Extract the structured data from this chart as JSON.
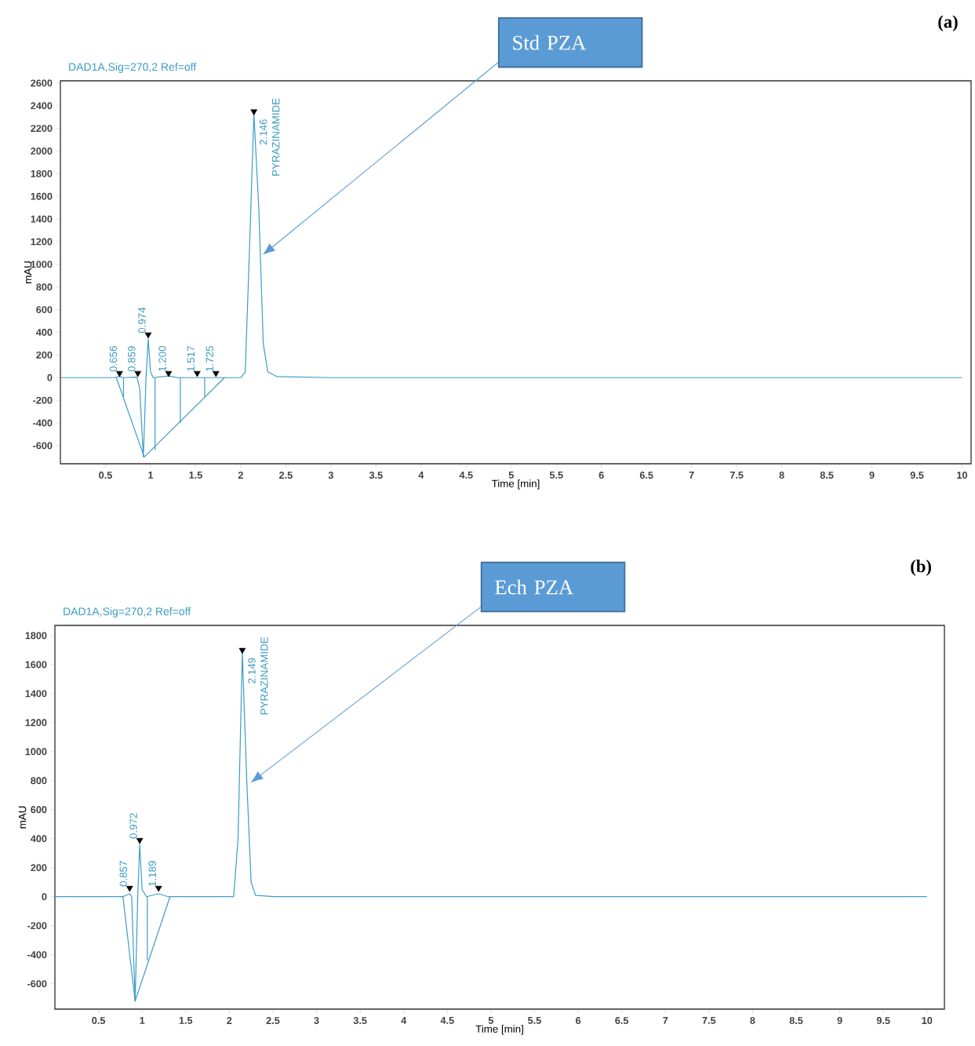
{
  "chart_data": [
    {
      "type": "line",
      "title": "DAD1A,Sig=270,2  Ref=off",
      "xlabel": "Time [min]",
      "ylabel": "mAU",
      "xlim": [
        0,
        10.1
      ],
      "ylim": [
        -760,
        2620
      ],
      "xticks": [
        0.5,
        1,
        1.5,
        2,
        2.5,
        3,
        3.5,
        4,
        4.5,
        5,
        5.5,
        6,
        6.5,
        7,
        7.5,
        8,
        8.5,
        9,
        9.5,
        10
      ],
      "yticks": [
        -600,
        -400,
        -200,
        0,
        200,
        400,
        600,
        800,
        1000,
        1200,
        1400,
        1600,
        1800,
        2000,
        2200,
        2400,
        2600
      ],
      "series": [
        {
          "color": "#3d9cc7",
          "x": [
            0,
            0.6,
            0.656,
            0.7,
            0.85,
            0.88,
            0.92,
            0.95,
            0.974,
            1.0,
            1.03,
            1.2,
            1.3,
            2.0,
            2.05,
            2.1,
            2.146,
            2.2,
            2.25,
            2.3,
            2.4,
            3,
            10
          ],
          "values": [
            0,
            0,
            10,
            0,
            5,
            -100,
            -700,
            0,
            340,
            50,
            0,
            15,
            0,
            0,
            50,
            1200,
            2330,
            1500,
            300,
            50,
            10,
            0,
            0
          ]
        },
        {
          "color": "#3d9cc7",
          "x": [
            0.62,
            0.93,
            1.82
          ],
          "values": [
            0,
            -700,
            0
          ]
        },
        {
          "color": "#3d9cc7",
          "x": [
            0.7,
            0.7
          ],
          "values": [
            0,
            -170
          ]
        },
        {
          "color": "#3d9cc7",
          "x": [
            1.05,
            1.05
          ],
          "values": [
            0,
            -640
          ]
        },
        {
          "color": "#3d9cc7",
          "x": [
            1.33,
            1.33
          ],
          "values": [
            0,
            -400
          ]
        },
        {
          "color": "#3d9cc7",
          "x": [
            1.6,
            1.6
          ],
          "values": [
            0,
            -170
          ]
        },
        {
          "type": "scatter",
          "color": "#000000",
          "marker": "triangle",
          "x": [
            0.656,
            0.859,
            0.974,
            1.2,
            1.517,
            1.725,
            2.146
          ],
          "values": [
            40,
            40,
            380,
            40,
            40,
            40,
            2350
          ]
        }
      ],
      "annotations": [
        "(a)",
        "Std PZA",
        {
          "text": "0.656",
          "x": 0.656,
          "y": 40
        },
        {
          "text": "0.859",
          "x": 0.859,
          "y": 40
        },
        {
          "text": "0.974",
          "x": 0.974,
          "y": 380
        },
        {
          "text": "1.200",
          "x": 1.2,
          "y": 40
        },
        {
          "text": "1.517",
          "x": 1.517,
          "y": 40
        },
        {
          "text": "1.725",
          "x": 1.725,
          "y": 40
        },
        {
          "text": "2.146",
          "x": 2.146,
          "y": 2350
        },
        {
          "text": "PYRAZINAMIDE",
          "x": 2.146,
          "y": 2350
        }
      ]
    },
    {
      "type": "line",
      "title": "DAD1A,Sig=270,2  Ref=off",
      "xlabel": "Time [min]",
      "ylabel": "mAU",
      "xlim": [
        0,
        10.2
      ],
      "ylim": [
        -775,
        1870
      ],
      "xticks": [
        0.5,
        1,
        1.5,
        2,
        2.5,
        3,
        3.5,
        4,
        4.5,
        5,
        5.5,
        6,
        6.5,
        7,
        7.5,
        8,
        8.5,
        9,
        9.5,
        10
      ],
      "yticks": [
        -600,
        -400,
        -200,
        0,
        200,
        400,
        600,
        800,
        1000,
        1200,
        1400,
        1600,
        1800
      ],
      "series": [
        {
          "color": "#3d9cc7",
          "x": [
            0,
            0.78,
            0.857,
            0.88,
            0.92,
            0.95,
            0.972,
            1.0,
            1.05,
            1.189,
            1.3,
            2.05,
            2.1,
            2.149,
            2.2,
            2.25,
            2.3,
            2.5,
            10
          ],
          "values": [
            0,
            0,
            20,
            0,
            -720,
            0,
            360,
            50,
            0,
            20,
            0,
            0,
            400,
            1680,
            800,
            100,
            10,
            0,
            0
          ]
        },
        {
          "color": "#3d9cc7",
          "x": [
            0.78,
            0.92,
            1.32
          ],
          "values": [
            0,
            -720,
            0
          ]
        },
        {
          "color": "#3d9cc7",
          "x": [
            1.06,
            1.06
          ],
          "values": [
            0,
            -440
          ]
        },
        {
          "type": "scatter",
          "color": "#000000",
          "marker": "triangle",
          "x": [
            0.857,
            0.972,
            1.189,
            2.149
          ],
          "values": [
            60,
            390,
            60,
            1700
          ]
        }
      ],
      "annotations": [
        "(b)",
        "Ech PZA",
        {
          "text": "0.857",
          "x": 0.857,
          "y": 60
        },
        {
          "text": "0.972",
          "x": 0.972,
          "y": 390
        },
        {
          "text": "1.189",
          "x": 1.189,
          "y": 60
        },
        {
          "text": "2.149",
          "x": 2.149,
          "y": 1700
        },
        {
          "text": "PYRAZINAMIDE",
          "x": 2.149,
          "y": 1700
        }
      ]
    }
  ]
}
